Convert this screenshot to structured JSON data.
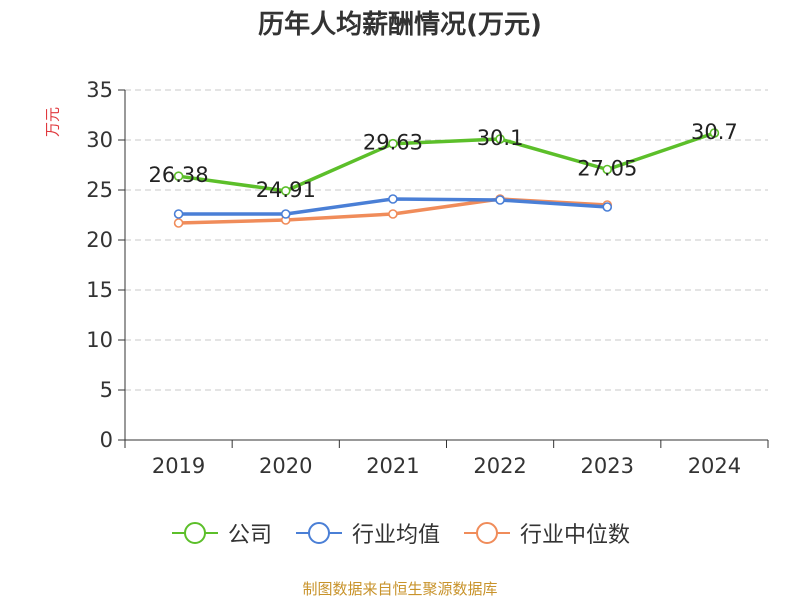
{
  "title": "历年人均薪酬情况(万元)",
  "source": "制图数据来自恒生聚源数据库",
  "chart_data": {
    "type": "line",
    "title": "历年人均薪酬情况(万元)",
    "ylabel": "万元",
    "xlabel": "",
    "categories": [
      "2019",
      "2020",
      "2021",
      "2022",
      "2023",
      "2024"
    ],
    "ylim": [
      0,
      35
    ],
    "yticks": [
      0,
      5,
      10,
      15,
      20,
      25,
      30,
      35
    ],
    "grid": true,
    "legend_position": "bottom",
    "series": [
      {
        "name": "公司",
        "color": "#5cbf2a",
        "values": [
          26.38,
          24.91,
          29.63,
          30.1,
          27.05,
          30.7
        ],
        "labels": [
          "26.38",
          "24.91",
          "29.63",
          "30.1",
          "27.05",
          "30.7"
        ]
      },
      {
        "name": "行业均值",
        "color": "#4a7fd6",
        "values": [
          22.6,
          22.6,
          24.1,
          24.0,
          23.3,
          null
        ]
      },
      {
        "name": "行业中位数",
        "color": "#f08c5a",
        "values": [
          21.7,
          22.0,
          22.6,
          24.1,
          23.5,
          null
        ]
      }
    ]
  }
}
